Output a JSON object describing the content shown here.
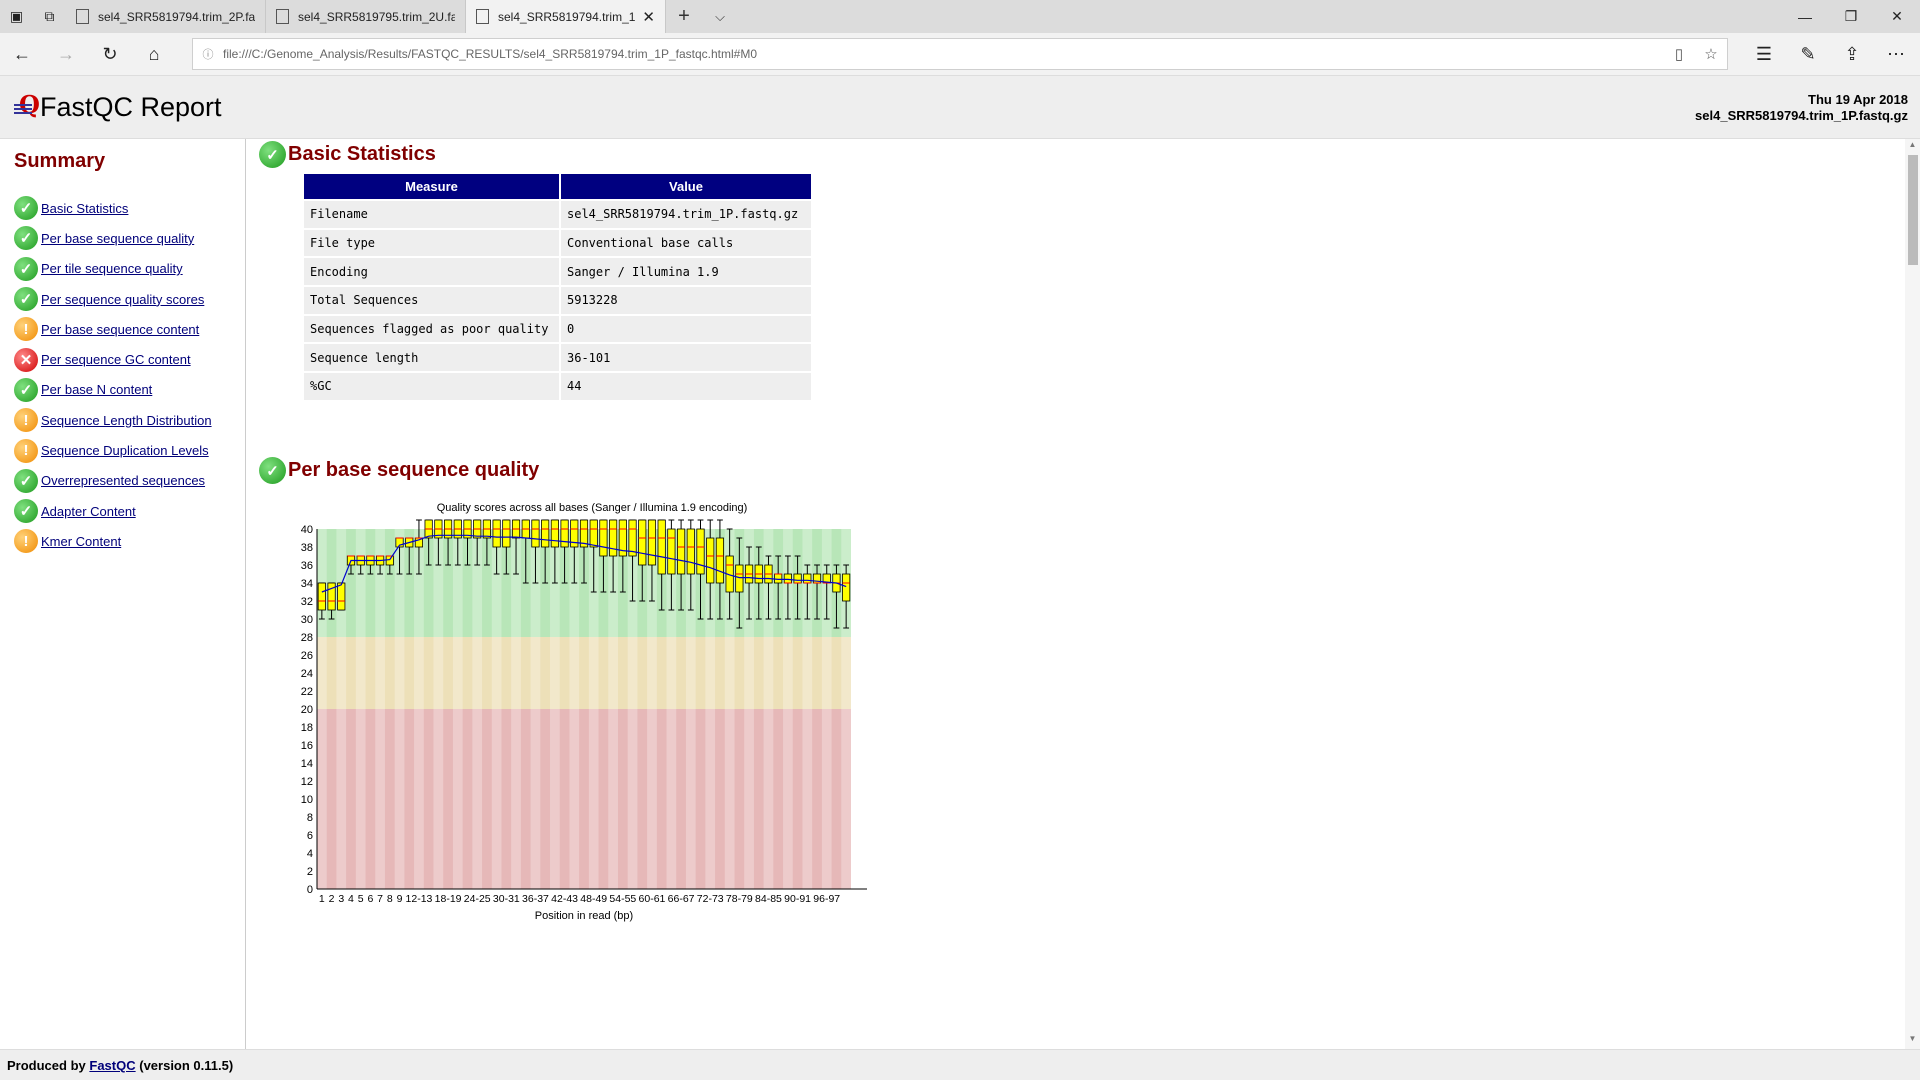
{
  "browser": {
    "tabs": [
      {
        "label": "sel4_SRR5819794.trim_2P.fa"
      },
      {
        "label": "sel4_SRR5819795.trim_2U.fa"
      },
      {
        "label": "sel4_SRR5819794.trim_1"
      }
    ],
    "url": "file:///C:/Genome_Analysis/Results/FASTQC_RESULTS/sel4_SRR5819794.trim_1P_fastqc.html#M0"
  },
  "header": {
    "title": "FastQC Report",
    "date": "Thu 19 Apr 2018",
    "filename": "sel4_SRR5819794.trim_1P.fastq.gz"
  },
  "summary": {
    "title": "Summary",
    "modules": [
      {
        "label": "Basic Statistics",
        "status": "pass"
      },
      {
        "label": "Per base sequence quality",
        "status": "pass"
      },
      {
        "label": "Per tile sequence quality",
        "status": "pass"
      },
      {
        "label": "Per sequence quality scores",
        "status": "pass"
      },
      {
        "label": "Per base sequence content",
        "status": "warn"
      },
      {
        "label": "Per sequence GC content",
        "status": "fail"
      },
      {
        "label": "Per base N content",
        "status": "pass"
      },
      {
        "label": "Sequence Length Distribution",
        "status": "warn"
      },
      {
        "label": "Sequence Duplication Levels",
        "status": "warn"
      },
      {
        "label": "Overrepresented sequences",
        "status": "pass"
      },
      {
        "label": "Adapter Content",
        "status": "pass"
      },
      {
        "label": "Kmer Content",
        "status": "warn"
      }
    ]
  },
  "basic_stats": {
    "title": "Basic Statistics",
    "col_measure": "Measure",
    "col_value": "Value",
    "rows": [
      {
        "measure": "Filename",
        "value": "sel4_SRR5819794.trim_1P.fastq.gz"
      },
      {
        "measure": "File type",
        "value": "Conventional base calls"
      },
      {
        "measure": "Encoding",
        "value": "Sanger / Illumina 1.9"
      },
      {
        "measure": "Total Sequences",
        "value": "5913228"
      },
      {
        "measure": "Sequences flagged as poor quality",
        "value": "0"
      },
      {
        "measure": "Sequence length",
        "value": "36-101"
      },
      {
        "measure": "%GC",
        "value": "44"
      }
    ]
  },
  "quality_section": {
    "title": "Per base sequence quality"
  },
  "chart_data": {
    "type": "boxplot",
    "title": "Quality scores across all bases (Sanger / Illumina 1.9 encoding)",
    "xlabel": "Position in read (bp)",
    "ylabel": "",
    "ylim": [
      0,
      40
    ],
    "yticks": [
      0,
      2,
      4,
      6,
      8,
      10,
      12,
      14,
      16,
      18,
      20,
      22,
      24,
      26,
      28,
      30,
      32,
      34,
      36,
      38,
      40
    ],
    "categories": [
      "1",
      "2",
      "3",
      "4",
      "5",
      "6",
      "7",
      "8",
      "9",
      "10-11",
      "12-13",
      "14-15",
      "16-17",
      "18-19",
      "20-21",
      "22-23",
      "24-25",
      "26-27",
      "28-29",
      "30-31",
      "32-33",
      "34-35",
      "36-37",
      "38-39",
      "40-41",
      "42-43",
      "44-45",
      "46-47",
      "48-49",
      "50-51",
      "52-53",
      "54-55",
      "56-57",
      "58-59",
      "60-61",
      "62-63",
      "64-65",
      "66-67",
      "68-69",
      "70-71",
      "72-73",
      "74-75",
      "76-77",
      "78-79",
      "80-81",
      "82-83",
      "84-85",
      "86-87",
      "88-89",
      "90-91",
      "92-93",
      "94-95",
      "96-97",
      "98-99",
      "100-101"
    ],
    "xtick_labels": [
      "1",
      "2",
      "3",
      "4",
      "5",
      "6",
      "7",
      "8",
      "9",
      "12-13",
      "18-19",
      "24-25",
      "30-31",
      "36-37",
      "42-43",
      "48-49",
      "54-55",
      "60-61",
      "66-67",
      "72-73",
      "78-79",
      "84-85",
      "90-91",
      "96-97"
    ],
    "q1": [
      31,
      31,
      31,
      36,
      36,
      36,
      36,
      36,
      38,
      38,
      38,
      39,
      39,
      39,
      39,
      39,
      39,
      39,
      38,
      38,
      39,
      39,
      38,
      38,
      38,
      38,
      38,
      38,
      38,
      37,
      37,
      37,
      37,
      36,
      36,
      35,
      35,
      35,
      35,
      35,
      34,
      34,
      33,
      33,
      34,
      34,
      34,
      34,
      34,
      34,
      34,
      34,
      34,
      33,
      32
    ],
    "q3": [
      34,
      34,
      34,
      37,
      37,
      37,
      37,
      37,
      39,
      39,
      39,
      41,
      41,
      41,
      41,
      41,
      41,
      41,
      41,
      41,
      41,
      41,
      41,
      41,
      41,
      41,
      41,
      41,
      41,
      41,
      41,
      41,
      41,
      41,
      41,
      41,
      40,
      40,
      40,
      40,
      39,
      39,
      37,
      36,
      36,
      36,
      36,
      35,
      35,
      35,
      35,
      35,
      35,
      35,
      35
    ],
    "median": [
      32,
      32,
      32,
      37,
      37,
      37,
      37,
      37,
      39,
      39,
      39,
      40,
      40,
      40,
      40,
      40,
      40,
      40,
      40,
      40,
      40,
      40,
      40,
      40,
      40,
      40,
      40,
      40,
      40,
      40,
      40,
      40,
      40,
      39,
      39,
      39,
      39,
      38,
      38,
      38,
      37,
      37,
      36,
      35,
      35,
      35,
      35,
      35,
      34,
      34,
      34,
      34,
      34,
      34,
      34
    ],
    "lower": [
      30,
      30,
      31,
      35,
      35,
      35,
      35,
      35,
      35,
      35,
      35,
      36,
      36,
      36,
      36,
      36,
      36,
      36,
      35,
      35,
      35,
      34,
      34,
      34,
      34,
      34,
      34,
      34,
      33,
      33,
      33,
      33,
      32,
      32,
      32,
      31,
      31,
      31,
      31,
      30,
      30,
      30,
      30,
      29,
      30,
      30,
      30,
      30,
      30,
      30,
      30,
      30,
      30,
      29,
      29
    ],
    "upper": [
      34,
      34,
      34,
      37,
      37,
      37,
      37,
      37,
      39,
      39,
      41,
      41,
      41,
      41,
      41,
      41,
      41,
      41,
      41,
      41,
      41,
      41,
      41,
      41,
      41,
      41,
      41,
      41,
      41,
      41,
      41,
      41,
      41,
      41,
      41,
      41,
      41,
      41,
      41,
      41,
      41,
      41,
      40,
      39,
      38,
      38,
      37,
      37,
      37,
      37,
      36,
      36,
      36,
      36,
      36
    ],
    "mean": [
      33.0,
      33.4,
      33.8,
      36.5,
      36.5,
      36.5,
      36.5,
      36.6,
      38.2,
      38.5,
      38.8,
      39.2,
      39.3,
      39.3,
      39.3,
      39.3,
      39.2,
      39.2,
      39.1,
      39.1,
      39.1,
      39.0,
      38.9,
      38.8,
      38.7,
      38.6,
      38.5,
      38.4,
      38.2,
      38.0,
      37.8,
      37.6,
      37.5,
      37.3,
      37.1,
      36.9,
      36.7,
      36.5,
      36.3,
      36.0,
      35.7,
      35.3,
      34.9,
      34.6,
      34.6,
      34.5,
      34.5,
      34.4,
      34.4,
      34.3,
      34.3,
      34.2,
      34.1,
      34.0,
      33.6
    ],
    "zones": [
      {
        "from": 28,
        "to": 40,
        "color": "#b8e6b8"
      },
      {
        "from": 20,
        "to": 28,
        "color": "#ede0b8"
      },
      {
        "from": 0,
        "to": 20,
        "color": "#e6b8b8"
      }
    ],
    "colors": {
      "box": "#ffff00",
      "median": "#ff0000",
      "mean": "#0000cc",
      "whisker": "#000000"
    }
  },
  "footer": {
    "produced_by": "Produced by",
    "link": "FastQC",
    "version": "(version 0.11.5)"
  }
}
